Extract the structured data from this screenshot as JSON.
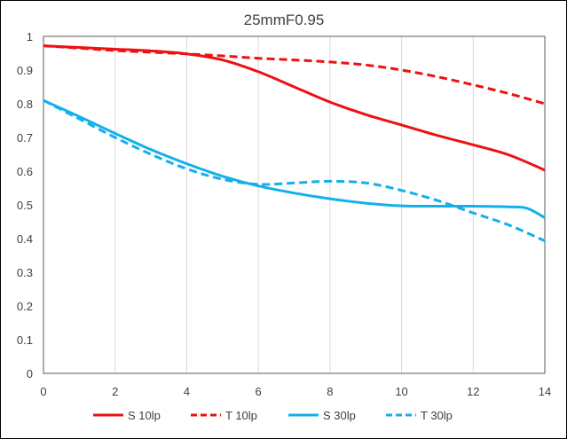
{
  "chart_data": {
    "type": "line",
    "title": "25mmF0.95",
    "xlabel": "",
    "ylabel": "",
    "xlim": [
      0,
      14
    ],
    "ylim": [
      0,
      1
    ],
    "x_ticks": [
      0,
      2,
      4,
      6,
      8,
      10,
      12,
      14
    ],
    "y_ticks": [
      0,
      0.1,
      0.2,
      0.3,
      0.4,
      0.5,
      0.6,
      0.7,
      0.8,
      0.9,
      1
    ],
    "grid": "vertical",
    "legend_position": "bottom",
    "series": [
      {
        "name": "S 10lp",
        "color": "#ee1111",
        "dash": "solid",
        "x": [
          0,
          1,
          2,
          3,
          4,
          5,
          6,
          7,
          8,
          9,
          10,
          11,
          12,
          13,
          14
        ],
        "y": [
          0.972,
          0.967,
          0.962,
          0.957,
          0.948,
          0.93,
          0.895,
          0.85,
          0.805,
          0.768,
          0.737,
          0.706,
          0.678,
          0.648,
          0.603
        ]
      },
      {
        "name": "T 10lp",
        "color": "#ee1111",
        "dash": "dashed",
        "x": [
          0,
          1,
          2,
          3,
          4,
          5,
          6,
          7,
          8,
          9,
          10,
          11,
          12,
          13,
          14
        ],
        "y": [
          0.972,
          0.965,
          0.958,
          0.953,
          0.948,
          0.942,
          0.935,
          0.93,
          0.924,
          0.915,
          0.9,
          0.88,
          0.856,
          0.83,
          0.8
        ]
      },
      {
        "name": "S 30lp",
        "color": "#13b0ea",
        "dash": "solid",
        "x": [
          0,
          1,
          2,
          3,
          4,
          5,
          6,
          7,
          8,
          9,
          10,
          11,
          12,
          13,
          13.5,
          14
        ],
        "y": [
          0.81,
          0.762,
          0.712,
          0.664,
          0.622,
          0.585,
          0.556,
          0.535,
          0.518,
          0.505,
          0.497,
          0.496,
          0.496,
          0.494,
          0.49,
          0.462
        ]
      },
      {
        "name": "T 30lp",
        "color": "#13b0ea",
        "dash": "dashed",
        "x": [
          0,
          1,
          2,
          3,
          4,
          5,
          6,
          7,
          8,
          9,
          10,
          11,
          12,
          13,
          14
        ],
        "y": [
          0.81,
          0.755,
          0.7,
          0.65,
          0.607,
          0.576,
          0.561,
          0.565,
          0.57,
          0.565,
          0.543,
          0.513,
          0.476,
          0.44,
          0.393
        ]
      }
    ]
  }
}
